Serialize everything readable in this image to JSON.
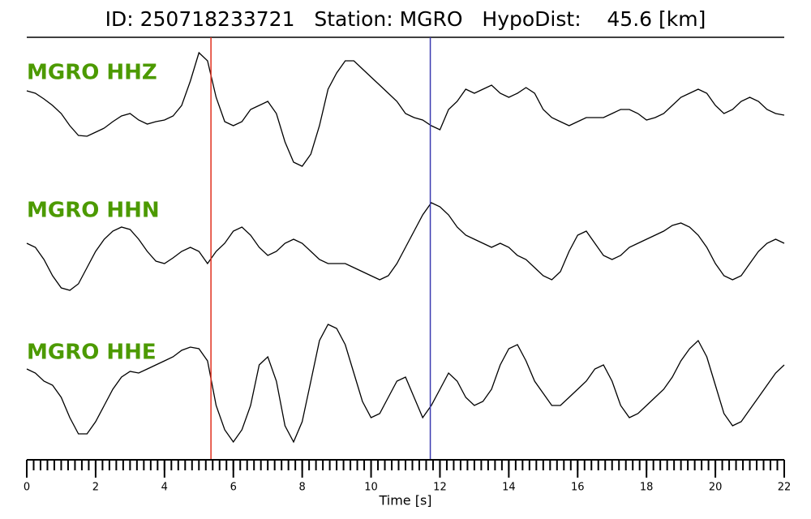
{
  "chart_data": {
    "type": "seismogram",
    "title": "ID: 250718233721   Station: MGRO   HypoDist:    45.6 [km]",
    "xlabel": "Time [s]",
    "xlim": [
      0,
      22
    ],
    "xticks": [
      0,
      2,
      4,
      6,
      8,
      10,
      12,
      14,
      16,
      18,
      20,
      22
    ],
    "xminorticks": [
      0,
      0.2,
      0.4,
      0.6,
      0.8,
      1,
      1.2,
      1.4,
      1.6,
      1.8,
      2,
      2.2,
      2.4,
      2.6,
      2.8,
      3,
      3.2,
      3.4,
      3.6,
      3.8,
      4,
      4.2,
      4.4,
      4.6,
      4.8,
      5,
      5.2,
      5.4,
      5.6,
      5.8,
      6,
      6.2,
      6.4,
      6.6,
      6.8,
      7,
      7.2,
      7.4,
      7.6,
      7.8,
      8,
      8.2,
      8.4,
      8.6,
      8.8,
      9,
      9.2,
      9.4,
      9.6,
      9.8,
      10,
      10.2,
      10.4,
      10.6,
      10.8,
      11,
      11.2,
      11.4,
      11.6,
      11.8,
      12,
      12.2,
      12.4,
      12.6,
      12.8,
      13,
      13.2,
      13.4,
      13.6,
      13.8,
      14,
      14.2,
      14.4,
      14.6,
      14.8,
      15,
      15.2,
      15.4,
      15.6,
      15.8,
      16,
      16.2,
      16.4,
      16.6,
      16.8,
      17,
      17.2,
      17.4,
      17.6,
      17.8,
      18,
      18.2,
      18.4,
      18.6,
      18.8,
      19,
      19.2,
      19.4,
      19.6,
      19.8,
      20,
      20.2,
      20.4,
      20.6,
      20.8,
      21,
      21.2,
      21.4,
      21.6,
      21.8,
      22
    ],
    "ylim": [
      -90,
      90
    ],
    "label_color": "#4c9a00",
    "markers": [
      {
        "x": 5.35,
        "color": "#e0301e"
      },
      {
        "x": 11.72,
        "color": "#3a3ab0"
      }
    ],
    "x": [
      0,
      0.25,
      0.5,
      0.75,
      1,
      1.25,
      1.5,
      1.75,
      2,
      2.25,
      2.5,
      2.75,
      3,
      3.25,
      3.5,
      3.75,
      4,
      4.25,
      4.5,
      4.75,
      5,
      5.25,
      5.5,
      5.75,
      6,
      6.25,
      6.5,
      6.75,
      7,
      7.25,
      7.5,
      7.75,
      8,
      8.25,
      8.5,
      8.75,
      9,
      9.25,
      9.5,
      9.75,
      10,
      10.25,
      10.5,
      10.75,
      11,
      11.25,
      11.5,
      11.75,
      12,
      12.25,
      12.5,
      12.75,
      13,
      13.25,
      13.5,
      13.75,
      14,
      14.25,
      14.5,
      14.75,
      15,
      15.25,
      15.5,
      15.75,
      16,
      16.25,
      16.5,
      16.75,
      17,
      17.25,
      17.5,
      17.75,
      18,
      18.25,
      18.5,
      18.75,
      19,
      19.25,
      19.5,
      19.75,
      20,
      20.25,
      20.5,
      20.75,
      21,
      21.25,
      21.5,
      21.75,
      22
    ],
    "series": [
      {
        "name": "MGRO HHZ",
        "color": "#000000",
        "values": [
          23,
          20,
          13,
          5,
          -5,
          -20,
          -32,
          -33,
          -28,
          -23,
          -15,
          -8,
          -5,
          -13,
          -18,
          -15,
          -13,
          -8,
          5,
          35,
          70,
          60,
          15,
          -15,
          -20,
          -15,
          0,
          5,
          10,
          -5,
          -40,
          -65,
          -70,
          -55,
          -20,
          25,
          45,
          60,
          60,
          50,
          40,
          30,
          20,
          10,
          -5,
          -10,
          -13,
          -20,
          -25,
          0,
          10,
          25,
          20,
          25,
          30,
          20,
          15,
          20,
          27,
          20,
          0,
          -10,
          -15,
          -20,
          -15,
          -10,
          -10,
          -10,
          -5,
          0,
          0,
          -5,
          -13,
          -10,
          -5,
          5,
          15,
          20,
          25,
          20,
          5,
          -5,
          0,
          10,
          15,
          10,
          0,
          -5,
          -7
        ]
      },
      {
        "name": "MGRO HHN",
        "color": "#000000",
        "values": [
          5,
          0,
          -15,
          -35,
          -50,
          -53,
          -45,
          -25,
          -5,
          10,
          20,
          25,
          22,
          10,
          -5,
          -17,
          -20,
          -13,
          -5,
          0,
          -5,
          -20,
          -5,
          5,
          20,
          25,
          15,
          0,
          -10,
          -5,
          5,
          10,
          5,
          -5,
          -15,
          -20,
          -20,
          -20,
          -25,
          -30,
          -35,
          -40,
          -35,
          -20,
          0,
          20,
          40,
          55,
          50,
          40,
          25,
          15,
          10,
          5,
          0,
          5,
          0,
          -10,
          -15,
          -25,
          -35,
          -40,
          -30,
          -5,
          15,
          20,
          5,
          -10,
          -15,
          -10,
          0,
          5,
          10,
          15,
          20,
          27,
          30,
          25,
          15,
          0,
          -20,
          -35,
          -40,
          -35,
          -20,
          -5,
          5,
          10,
          5
        ]
      },
      {
        "name": "MGRO HHE",
        "color": "#000000",
        "values": [
          25,
          20,
          10,
          5,
          -10,
          -35,
          -55,
          -55,
          -40,
          -20,
          0,
          15,
          22,
          20,
          25,
          30,
          35,
          40,
          48,
          52,
          50,
          35,
          -20,
          -50,
          -65,
          -50,
          -20,
          30,
          40,
          10,
          -45,
          -65,
          -40,
          10,
          60,
          80,
          75,
          55,
          20,
          -15,
          -35,
          -30,
          -10,
          10,
          15,
          -10,
          -35,
          -20,
          0,
          20,
          10,
          -10,
          -20,
          -15,
          0,
          30,
          50,
          55,
          35,
          10,
          -5,
          -20,
          -20,
          -10,
          0,
          10,
          25,
          30,
          10,
          -20,
          -35,
          -30,
          -20,
          -10,
          0,
          15,
          35,
          50,
          60,
          40,
          5,
          -30,
          -45,
          -40,
          -25,
          -10,
          5,
          20,
          30
        ]
      }
    ]
  }
}
